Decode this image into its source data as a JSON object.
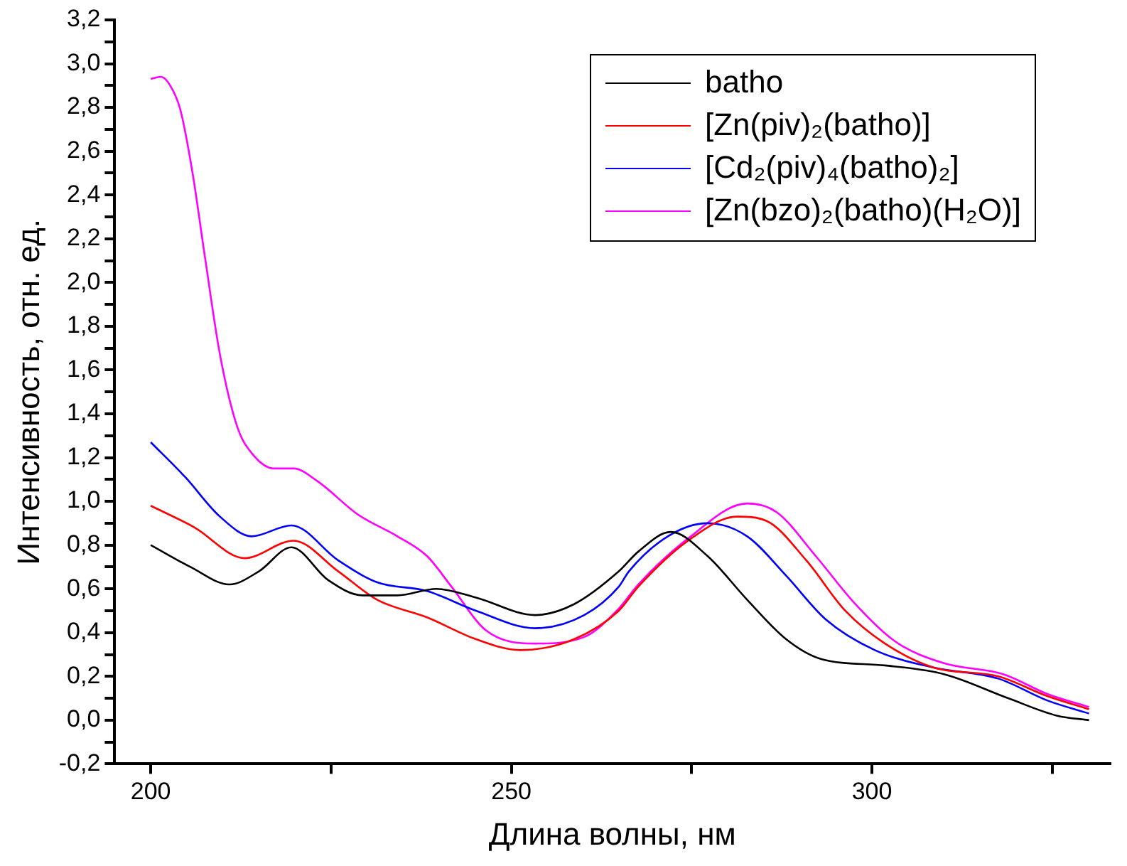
{
  "chart_data": {
    "type": "line",
    "xlabel": "Длина волны, нм",
    "ylabel": "Интенсивность, отн. ед.",
    "xlim": [
      195,
      333
    ],
    "xticks": [
      200,
      {
        "value": 225,
        "label": null
      },
      250,
      {
        "value": 275,
        "label": null
      },
      300,
      {
        "value": 325,
        "label": null
      }
    ],
    "ylim": [
      -0.2,
      3.2
    ],
    "yticks": [
      {
        "value": -0.2,
        "label": "-0,2"
      },
      {
        "value": -0.1,
        "label": null
      },
      {
        "value": 0,
        "label": "0,0"
      },
      {
        "value": 0.1,
        "label": null
      },
      {
        "value": 0.2,
        "label": "0,2"
      },
      {
        "value": 0.3,
        "label": null
      },
      {
        "value": 0.4,
        "label": "0,4"
      },
      {
        "value": 0.5,
        "label": null
      },
      {
        "value": 0.6,
        "label": "0,6"
      },
      {
        "value": 0.7,
        "label": null
      },
      {
        "value": 0.8,
        "label": "0,8"
      },
      {
        "value": 0.9,
        "label": null
      },
      {
        "value": 1,
        "label": "1,0"
      },
      {
        "value": 1.1,
        "label": null
      },
      {
        "value": 1.2,
        "label": "1,2"
      },
      {
        "value": 1.3,
        "label": null
      },
      {
        "value": 1.4,
        "label": "1,4"
      },
      {
        "value": 1.5,
        "label": null
      },
      {
        "value": 1.6,
        "label": "1,6"
      },
      {
        "value": 1.7,
        "label": null
      },
      {
        "value": 1.8,
        "label": "1,8"
      },
      {
        "value": 1.9,
        "label": null
      },
      {
        "value": 2,
        "label": "2,0"
      },
      {
        "value": 2.1,
        "label": null
      },
      {
        "value": 2.2,
        "label": "2,2"
      },
      {
        "value": 2.3,
        "label": null
      },
      {
        "value": 2.4,
        "label": "2,4"
      },
      {
        "value": 2.5,
        "label": null
      },
      {
        "value": 2.6,
        "label": "2,6"
      },
      {
        "value": 2.7,
        "label": null
      },
      {
        "value": 2.8,
        "label": "2,8"
      },
      {
        "value": 2.9,
        "label": null
      },
      {
        "value": 3,
        "label": "3,0"
      },
      {
        "value": 3.1,
        "label": null
      },
      {
        "value": 3.2,
        "label": "3,2"
      }
    ],
    "grid": false,
    "legend": "top right",
    "marker": "none",
    "line_style": "solid",
    "series": [
      {
        "name": "batho",
        "color": "#000000",
        "x": [
          200,
          205.5,
          210.9,
          215,
          219.5,
          224.6,
          229.4,
          234.2,
          239.6,
          245.1,
          253.3,
          258.7,
          264.9,
          267.6,
          272.1,
          277.2,
          282.7,
          288.1,
          292.9,
          301.8,
          310,
          318.9,
          325.7,
          330.1
        ],
        "values": [
          0.8,
          0.7,
          0.62,
          0.68,
          0.79,
          0.64,
          0.57,
          0.57,
          0.6,
          0.56,
          0.48,
          0.53,
          0.68,
          0.77,
          0.86,
          0.75,
          0.55,
          0.37,
          0.28,
          0.25,
          0.21,
          0.1,
          0.02,
          0.0
        ]
      },
      {
        "name": "[Zn(piv)₂(batho)]",
        "color": "#ff0000",
        "x": [
          200,
          206.1,
          213,
          219.8,
          226,
          231.4,
          238.3,
          245.1,
          251.2,
          258.7,
          264.9,
          267.6,
          274.5,
          281.3,
          285.4,
          290.9,
          296.3,
          301.8,
          308.6,
          317.5,
          324.3,
          330.1
        ],
        "values": [
          0.98,
          0.88,
          0.74,
          0.82,
          0.68,
          0.55,
          0.47,
          0.37,
          0.32,
          0.37,
          0.5,
          0.61,
          0.82,
          0.93,
          0.91,
          0.73,
          0.5,
          0.35,
          0.24,
          0.2,
          0.11,
          0.05
        ]
      },
      {
        "name": "[Cd₂(piv)₄(batho)₂]",
        "color": "#0000ff",
        "x": [
          200,
          204.8,
          209.6,
          214,
          219.5,
          226,
          231.4,
          238.3,
          245.1,
          253.3,
          260.1,
          264.9,
          266.3,
          271.7,
          277.2,
          282.7,
          288.1,
          293.6,
          300.4,
          308.6,
          317.5,
          324.3,
          330.1
        ],
        "values": [
          1.27,
          1.11,
          0.93,
          0.84,
          0.89,
          0.73,
          0.63,
          0.59,
          0.5,
          0.42,
          0.48,
          0.61,
          0.68,
          0.84,
          0.9,
          0.84,
          0.66,
          0.46,
          0.32,
          0.24,
          0.19,
          0.09,
          0.03
        ]
      },
      {
        "name": "[Zn(bzo)₂(batho)(H₂O)]",
        "color": "#ff00ff",
        "x": [
          200,
          201.4,
          202.7,
          204.1,
          205.8,
          207.5,
          209.6,
          212,
          214,
          217.1,
          219.8,
          223.2,
          228.7,
          234.2,
          238.3,
          241.7,
          246.5,
          253.3,
          260.1,
          264.9,
          267.6,
          274.5,
          282.7,
          286.8,
          292.2,
          297.7,
          303.2,
          310,
          318.2,
          324.3,
          330.1
        ],
        "values": [
          2.93,
          2.94,
          2.9,
          2.79,
          2.5,
          2.12,
          1.67,
          1.34,
          1.22,
          1.15,
          1.15,
          1.09,
          0.94,
          0.84,
          0.75,
          0.61,
          0.41,
          0.35,
          0.38,
          0.51,
          0.62,
          0.83,
          0.99,
          0.95,
          0.75,
          0.53,
          0.36,
          0.26,
          0.21,
          0.12,
          0.06
        ]
      }
    ]
  }
}
